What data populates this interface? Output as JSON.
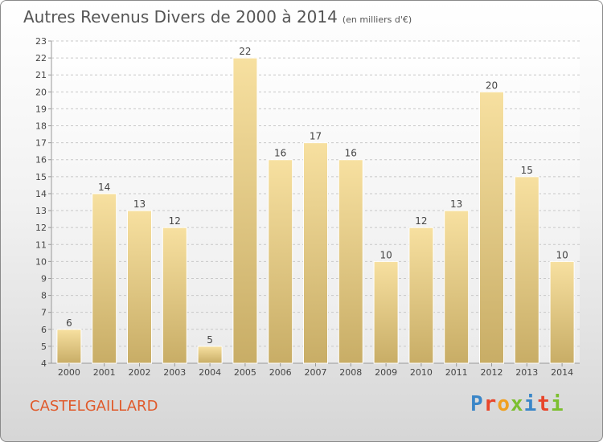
{
  "title": "Autres Revenus Divers de 2000 à 2014",
  "unit": "(en milliers d'€)",
  "commune": "CASTELGAILLARD",
  "logo": {
    "text": "Proxiti",
    "colors": [
      "#3a86c8",
      "#e8462b",
      "#f0a020",
      "#7cbf2f",
      "#3a86c8",
      "#e8462b",
      "#7cbf2f"
    ]
  },
  "chart_data": {
    "type": "bar",
    "categories": [
      "2000",
      "2001",
      "2002",
      "2003",
      "2004",
      "2005",
      "2006",
      "2007",
      "2008",
      "2009",
      "2010",
      "2011",
      "2012",
      "2013",
      "2014"
    ],
    "values": [
      6,
      14,
      13,
      12,
      5,
      22,
      16,
      17,
      16,
      10,
      12,
      13,
      20,
      15,
      10
    ],
    "ylim": [
      4,
      23
    ],
    "yticks": [
      4,
      5,
      6,
      7,
      8,
      9,
      10,
      11,
      12,
      13,
      14,
      15,
      16,
      17,
      18,
      19,
      20,
      21,
      22,
      23
    ],
    "grid": "horizontal-dashed",
    "bar_color_top": "#f7e0a0",
    "bar_color_bottom": "#c8ad66"
  }
}
